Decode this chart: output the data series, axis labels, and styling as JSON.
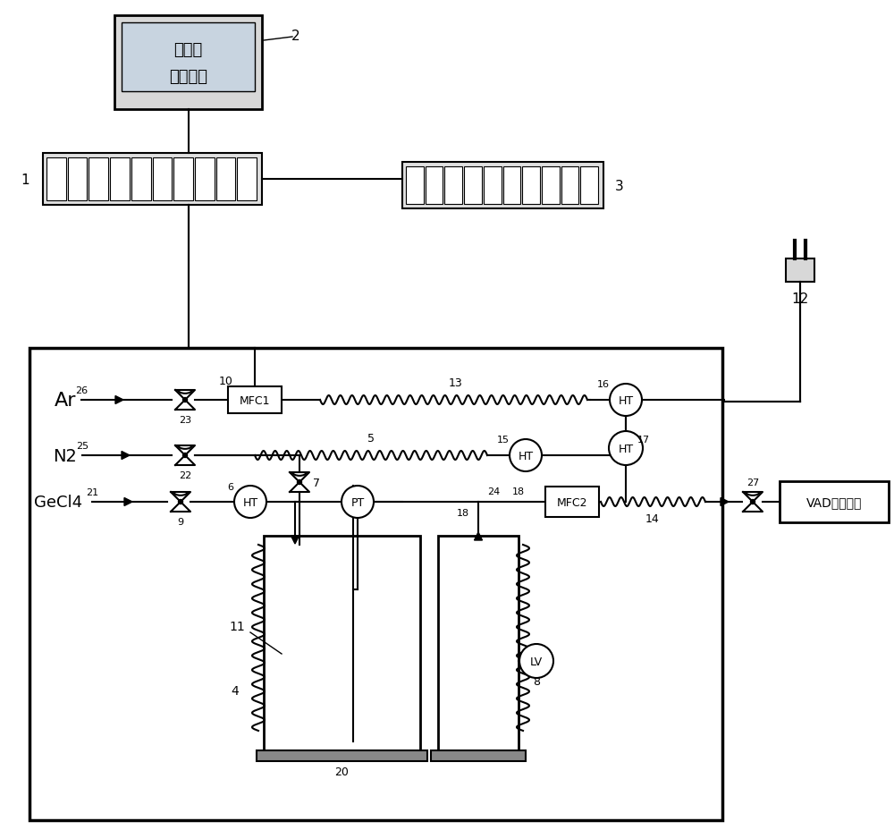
{
  "bg_color": "#ffffff",
  "figsize": [
    10.0,
    9.29
  ],
  "dpi": 100,
  "screen_line1": "蒸发设",
  "screen_line2": "备触摸屏",
  "vad_text": "VAD噴灯出口",
  "mfc1_text": "MFC1",
  "mfc2_text": "MFC2",
  "ar_text": "Ar",
  "n2_text": "N2",
  "gecl4_text": "GeCl4",
  "ht_text": "HT",
  "pt_text": "PT",
  "lv_text": "LV"
}
